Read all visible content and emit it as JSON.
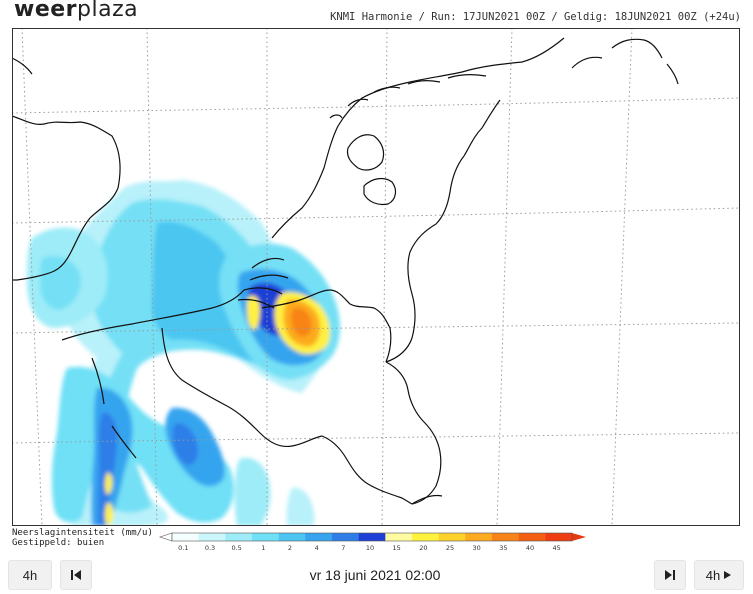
{
  "header": {
    "logo_part1": "weer",
    "logo_part2": "plaza",
    "run_info": "KNMI Harmonie / Run: 17JUN2021 00Z / Geldig: 18JUN2021 00Z (+24u)"
  },
  "legend": {
    "title_line1": "Neerslagintensiteit (mm/u)",
    "title_line2": "Gestippeld: buien",
    "ticks": [
      "0.1",
      "0.3",
      "0.5",
      "1",
      "2",
      "4",
      "7",
      "10",
      "15",
      "20",
      "25",
      "30",
      "35",
      "40",
      "45"
    ],
    "colors": [
      "#f4feff",
      "#cbf6fb",
      "#9eecf8",
      "#6fe0f6",
      "#4cc6f1",
      "#36a4ef",
      "#2f7ee8",
      "#1d3fd6",
      "#fffba0",
      "#fff13f",
      "#fed12b",
      "#fcaa1f",
      "#f88419",
      "#f46012",
      "#ee3d10"
    ]
  },
  "controls": {
    "step_back_label": "4h",
    "step_fwd_label": "4h",
    "date_label": "vr 18 juni 2021 02:00"
  },
  "icons": {
    "first": "skip-back-icon",
    "last": "skip-forward-icon",
    "play": "play-triangle-icon"
  }
}
